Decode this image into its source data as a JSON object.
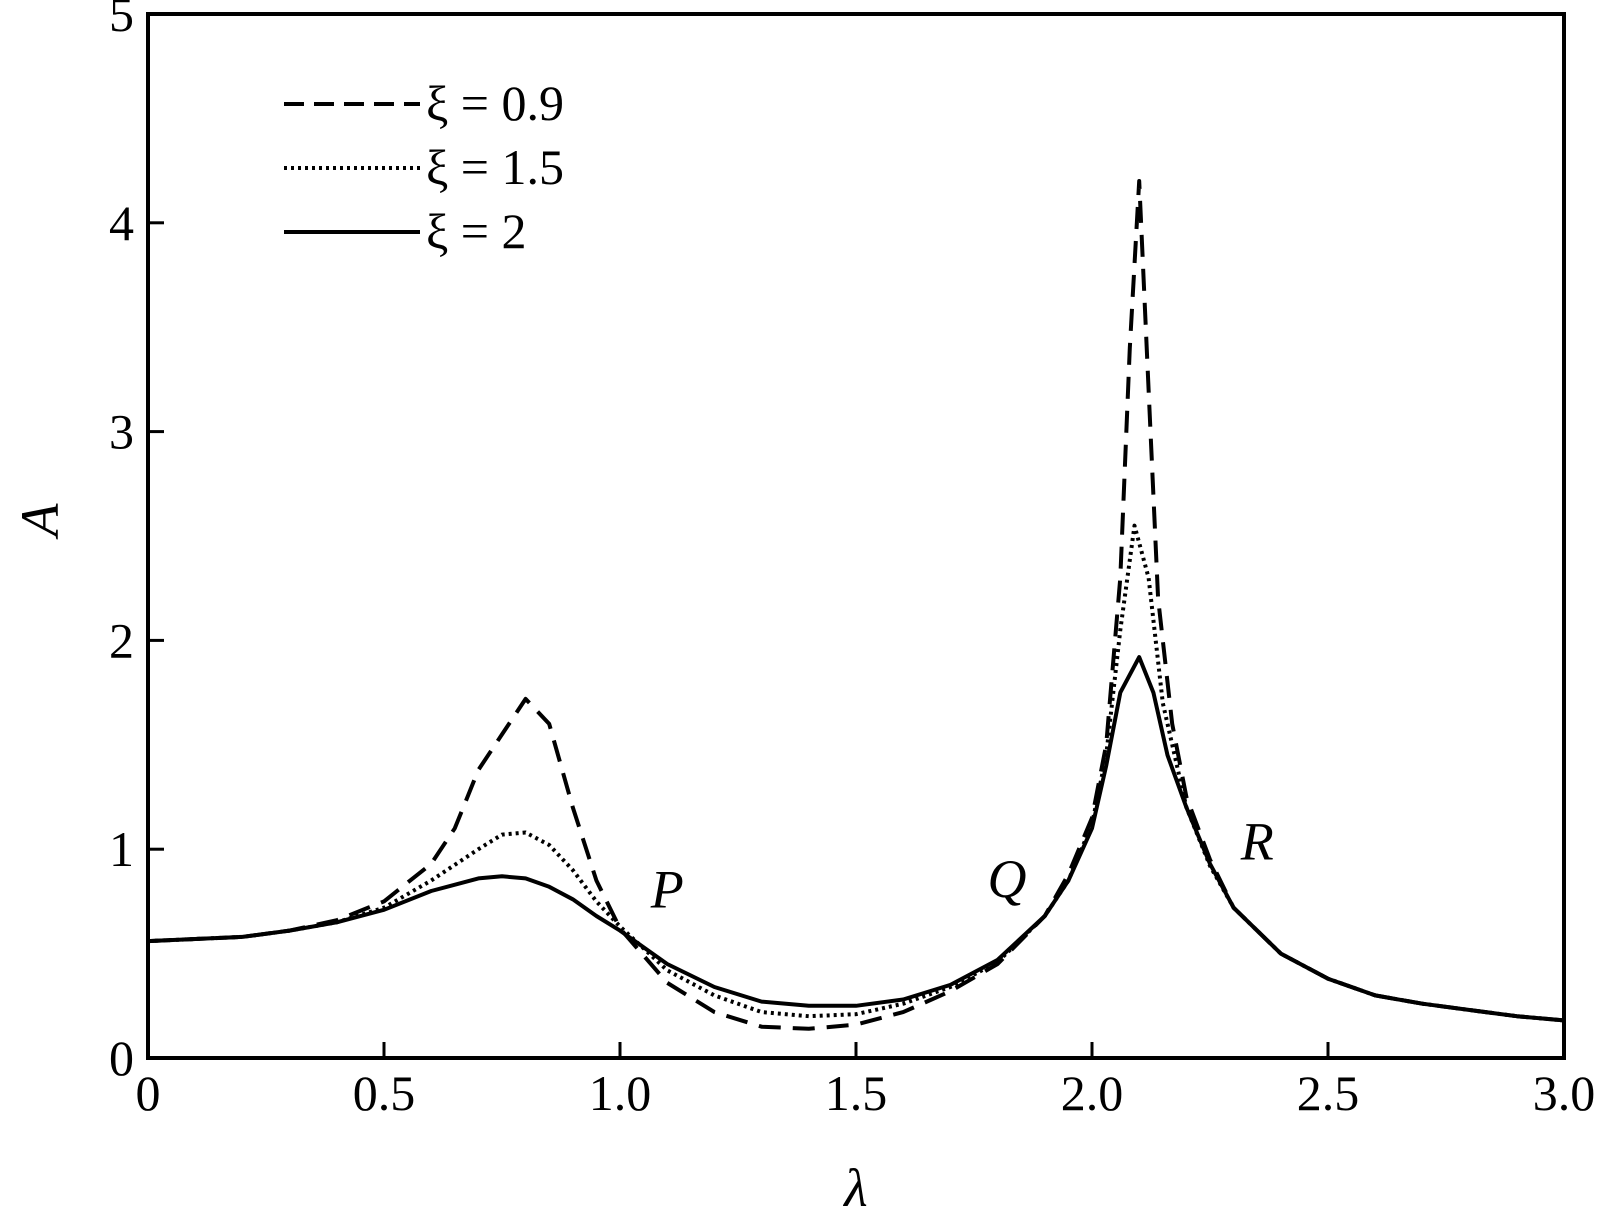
{
  "chart_data": {
    "type": "line",
    "title": "",
    "xlabel": "λ",
    "ylabel": "A",
    "xlim": [
      0,
      3.0
    ],
    "ylim": [
      0,
      5
    ],
    "x_ticks": [
      0,
      0.5,
      1.0,
      1.5,
      2.0,
      2.5,
      3.0
    ],
    "x_tick_labels": [
      "0",
      "0.5",
      "1.0",
      "1.5",
      "2.0",
      "2.5",
      "3.0"
    ],
    "y_ticks": [
      0,
      1,
      2,
      3,
      4,
      5
    ],
    "y_tick_labels": [
      "0",
      "1",
      "2",
      "3",
      "4",
      "5"
    ],
    "grid": false,
    "legend_position": "top-left",
    "series": [
      {
        "name": "ξ = 0.9",
        "style": "dashed",
        "color": "#000000",
        "x": [
          0,
          0.1,
          0.2,
          0.3,
          0.4,
          0.5,
          0.6,
          0.65,
          0.7,
          0.75,
          0.8,
          0.85,
          0.9,
          0.95,
          1.0,
          1.1,
          1.2,
          1.3,
          1.4,
          1.5,
          1.6,
          1.7,
          1.8,
          1.9,
          1.95,
          2.0,
          2.03,
          2.06,
          2.08,
          2.1,
          2.12,
          2.14,
          2.17,
          2.2,
          2.25,
          2.3,
          2.4,
          2.5,
          2.6,
          2.7,
          2.8,
          2.9,
          3.0
        ],
        "y": [
          0.56,
          0.57,
          0.58,
          0.61,
          0.66,
          0.75,
          0.93,
          1.1,
          1.38,
          1.55,
          1.72,
          1.6,
          1.2,
          0.85,
          0.62,
          0.36,
          0.22,
          0.15,
          0.14,
          0.16,
          0.22,
          0.32,
          0.45,
          0.68,
          0.88,
          1.15,
          1.5,
          2.3,
          3.4,
          4.2,
          3.2,
          2.2,
          1.6,
          1.25,
          0.95,
          0.72,
          0.5,
          0.38,
          0.3,
          0.26,
          0.23,
          0.2,
          0.18
        ]
      },
      {
        "name": "ξ = 1.5",
        "style": "dotted",
        "color": "#000000",
        "x": [
          0,
          0.1,
          0.2,
          0.3,
          0.4,
          0.5,
          0.6,
          0.7,
          0.75,
          0.8,
          0.85,
          0.9,
          0.95,
          1.0,
          1.1,
          1.2,
          1.3,
          1.4,
          1.5,
          1.6,
          1.7,
          1.8,
          1.9,
          1.95,
          2.0,
          2.03,
          2.06,
          2.09,
          2.12,
          2.15,
          2.2,
          2.25,
          2.3,
          2.4,
          2.5,
          2.6,
          2.7,
          2.8,
          2.9,
          3.0
        ],
        "y": [
          0.56,
          0.57,
          0.58,
          0.61,
          0.65,
          0.72,
          0.85,
          1.0,
          1.07,
          1.08,
          1.02,
          0.9,
          0.75,
          0.63,
          0.42,
          0.3,
          0.22,
          0.2,
          0.21,
          0.26,
          0.34,
          0.46,
          0.68,
          0.85,
          1.12,
          1.45,
          2.05,
          2.55,
          2.3,
          1.7,
          1.2,
          0.92,
          0.72,
          0.5,
          0.38,
          0.3,
          0.26,
          0.23,
          0.2,
          0.18
        ]
      },
      {
        "name": "ξ = 2",
        "style": "solid",
        "color": "#000000",
        "x": [
          0,
          0.1,
          0.2,
          0.3,
          0.4,
          0.5,
          0.6,
          0.7,
          0.75,
          0.8,
          0.85,
          0.9,
          0.95,
          1.0,
          1.1,
          1.2,
          1.3,
          1.4,
          1.5,
          1.6,
          1.7,
          1.8,
          1.9,
          1.95,
          2.0,
          2.03,
          2.06,
          2.1,
          2.13,
          2.16,
          2.2,
          2.25,
          2.3,
          2.4,
          2.5,
          2.6,
          2.7,
          2.8,
          2.9,
          3.0
        ],
        "y": [
          0.56,
          0.57,
          0.58,
          0.61,
          0.65,
          0.71,
          0.8,
          0.86,
          0.87,
          0.86,
          0.82,
          0.76,
          0.68,
          0.61,
          0.45,
          0.34,
          0.27,
          0.25,
          0.25,
          0.28,
          0.35,
          0.47,
          0.68,
          0.85,
          1.1,
          1.4,
          1.75,
          1.92,
          1.75,
          1.45,
          1.2,
          0.93,
          0.72,
          0.5,
          0.38,
          0.3,
          0.26,
          0.23,
          0.2,
          0.18
        ]
      }
    ],
    "annotations": [
      {
        "text": "P",
        "x": 1.1,
        "y": 0.72
      },
      {
        "text": "Q",
        "x": 1.82,
        "y": 0.77
      },
      {
        "text": "R",
        "x": 2.35,
        "y": 0.95
      }
    ]
  }
}
